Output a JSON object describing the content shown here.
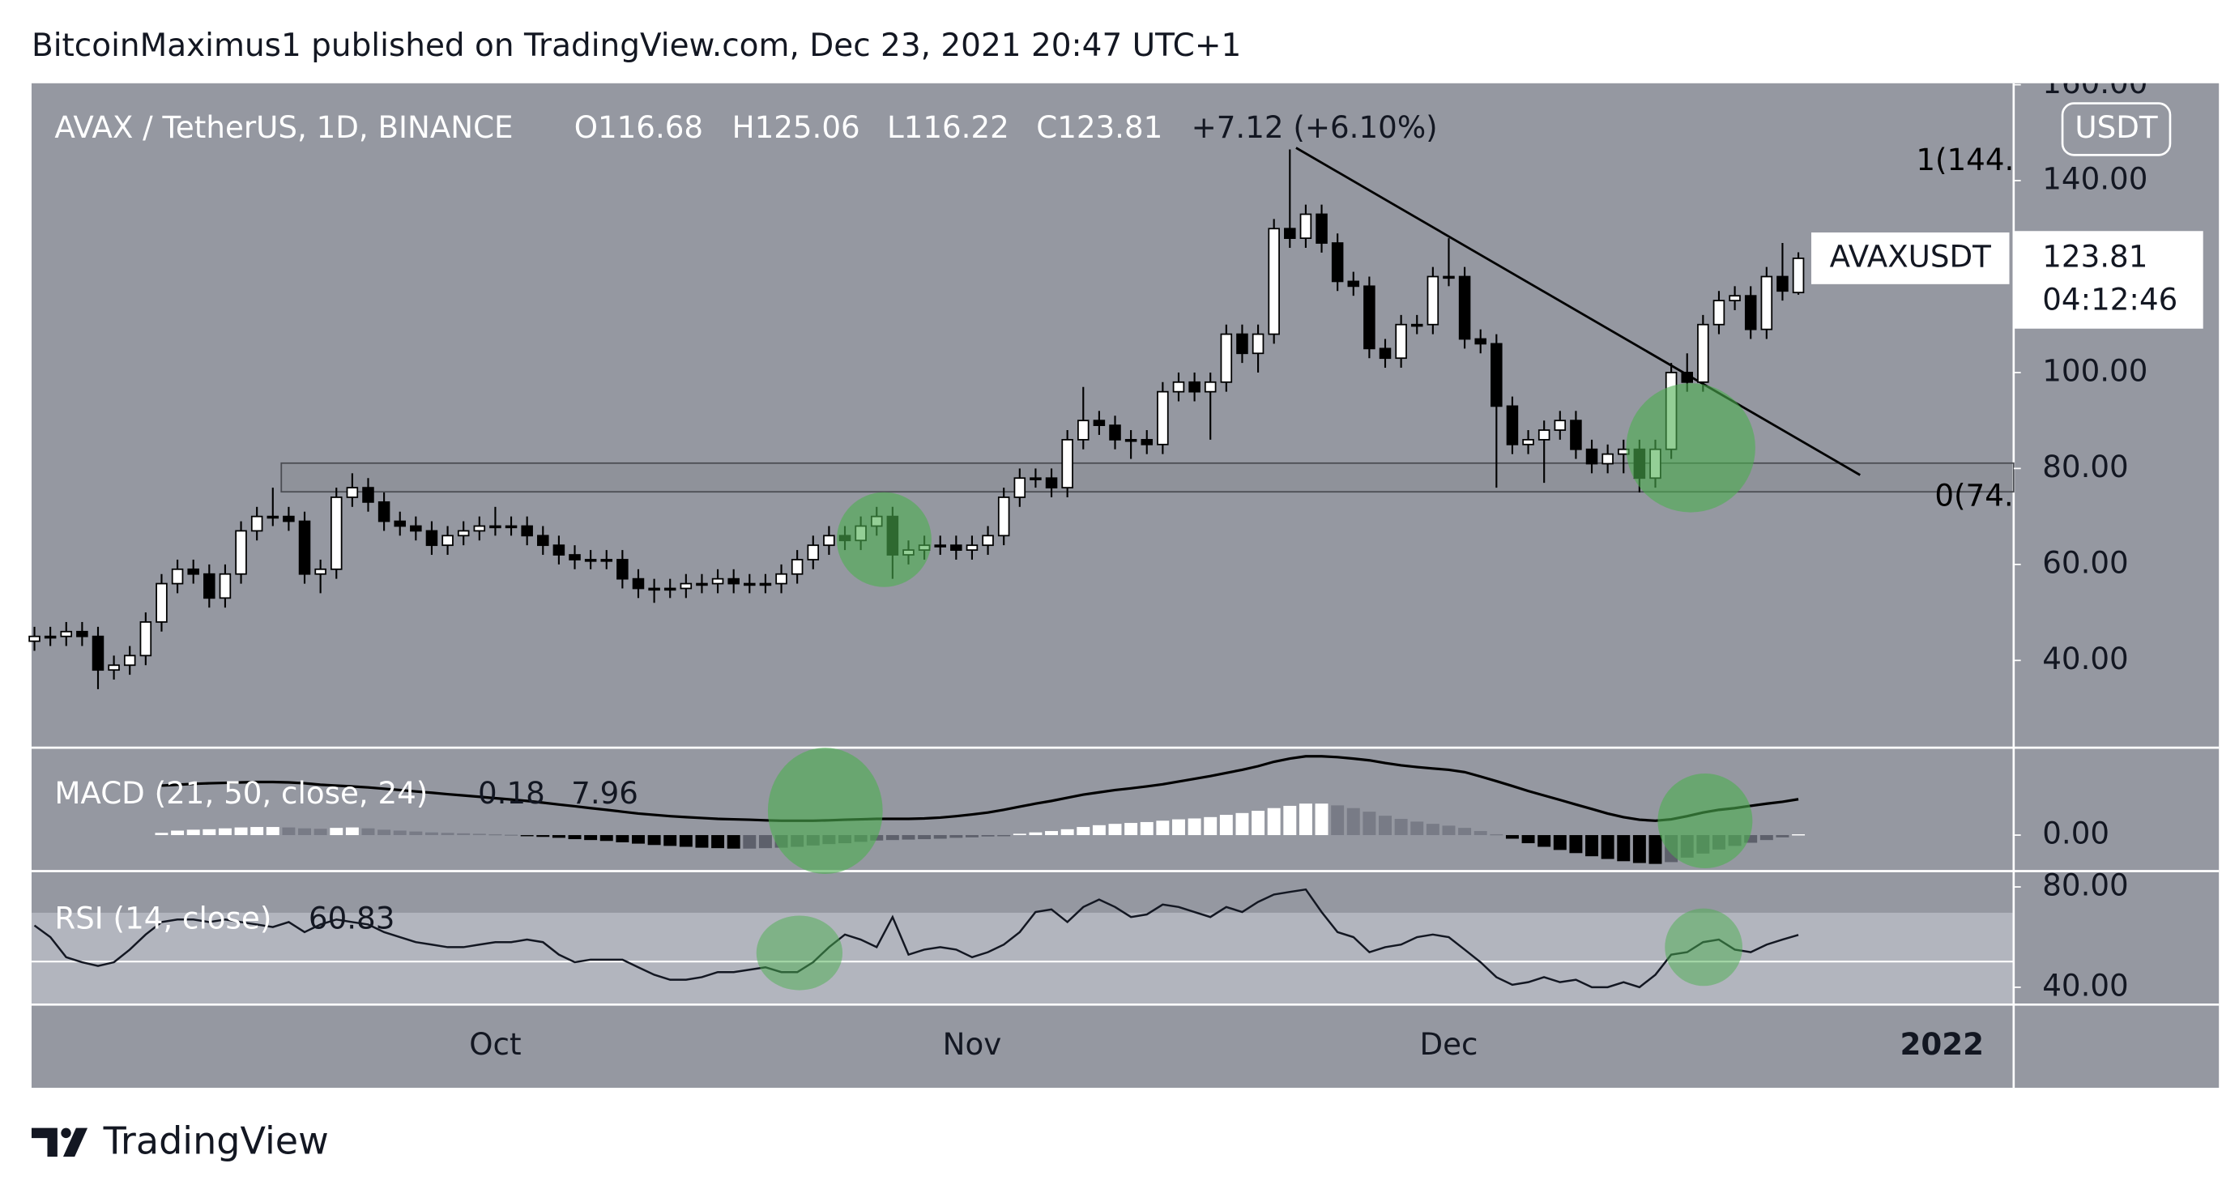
{
  "header": "BitcoinMaximus1 published on TradingView.com, Dec 23, 2021 20:47 UTC+1",
  "footer": "TradingView",
  "chart_data": {
    "type": "candlestick",
    "legend": {
      "symbol": "AVAX / TetherUS, 1D, BINANCE",
      "open": "O116.68",
      "high": "H125.06",
      "low": "L116.22",
      "close": "C123.81",
      "change": "+7.12 (+6.10%)"
    },
    "currency": "USDT",
    "price_label": {
      "symbol": "AVAXUSDT",
      "value": 123.81,
      "countdown": "04:12:46"
    },
    "fib_levels": [
      {
        "value": 144,
        "label": "1(144."
      },
      {
        "value": 74,
        "label": "0(74."
      }
    ],
    "colors": {
      "up": "#ffffff",
      "down": "#000000"
    },
    "categories": [
      null,
      null,
      null,
      null,
      null,
      null,
      null,
      null,
      null,
      null,
      null,
      null,
      null,
      null,
      null,
      null,
      null,
      null,
      null,
      null,
      null,
      null,
      null,
      null,
      null,
      null,
      null,
      null,
      null,
      "Oct",
      null,
      null,
      null,
      null,
      null,
      null,
      null,
      null,
      null,
      null,
      null,
      null,
      null,
      null,
      null,
      null,
      null,
      null,
      null,
      null,
      null,
      null,
      null,
      null,
      null,
      null,
      null,
      null,
      null,
      "Nov",
      null,
      null,
      null,
      null,
      null,
      null,
      null,
      null,
      null,
      null,
      null,
      null,
      null,
      null,
      null,
      null,
      null,
      null,
      null,
      null,
      null,
      null,
      null,
      null,
      null,
      null,
      null,
      null,
      null,
      "Dec",
      null,
      null,
      null,
      null,
      null,
      null,
      null,
      null,
      null,
      null,
      null,
      null,
      null,
      null,
      null,
      null,
      null,
      null,
      null,
      null,
      null,
      null
    ],
    "open": [
      44,
      45,
      45,
      46,
      45,
      38,
      39,
      41,
      48,
      56,
      59,
      58,
      53,
      58,
      67,
      70,
      70,
      69,
      58,
      59,
      74,
      76,
      73,
      69,
      68,
      67,
      64,
      66,
      67,
      68,
      68,
      68,
      66,
      64,
      62,
      61,
      61,
      61,
      57,
      55,
      55,
      55,
      56,
      56,
      57,
      56,
      56,
      56,
      58,
      61,
      64,
      66,
      65,
      68,
      70,
      62,
      63,
      64,
      64,
      63,
      64,
      66,
      74,
      78,
      78,
      76,
      86,
      90,
      89,
      86,
      86,
      85,
      96,
      98,
      96,
      98,
      108,
      104,
      108,
      130,
      128,
      133,
      127,
      119,
      118,
      105,
      103,
      110,
      110,
      120,
      120,
      107,
      106,
      93,
      85,
      86,
      88,
      90,
      84,
      81,
      83,
      84,
      78,
      84,
      100,
      98,
      110,
      115,
      116,
      109,
      120,
      116.68
    ],
    "high": [
      47,
      47,
      48,
      48,
      47,
      41,
      43,
      50,
      58,
      61,
      61,
      60,
      60,
      69,
      72,
      76,
      72,
      71,
      61,
      76,
      79,
      78,
      75,
      71,
      70,
      69,
      68,
      69,
      70,
      72,
      70,
      70,
      68,
      66,
      64,
      63,
      63,
      63,
      59,
      57,
      57,
      58,
      58,
      59,
      59,
      58,
      58,
      60,
      63,
      66,
      68,
      68,
      70,
      72,
      72,
      65,
      66,
      66,
      66,
      66,
      68,
      76,
      80,
      80,
      80,
      88,
      97,
      92,
      91,
      88,
      88,
      98,
      100,
      100,
      100,
      110,
      110,
      110,
      132,
      146.5,
      135,
      135,
      129,
      121,
      120,
      107,
      112,
      112,
      122,
      128,
      122,
      109,
      108,
      95,
      88,
      90,
      92,
      92,
      86,
      85,
      86,
      86,
      86,
      102,
      104,
      112,
      117,
      118,
      118,
      122,
      127,
      125.06
    ],
    "low": [
      42,
      43,
      43,
      43,
      34,
      36,
      37,
      39,
      46,
      54,
      56,
      51,
      51,
      56,
      65,
      68,
      67,
      56,
      54,
      57,
      72,
      71,
      67,
      66,
      65,
      62,
      62,
      64,
      65,
      66,
      66,
      64,
      62,
      60,
      59,
      59,
      59,
      55,
      53,
      52,
      53,
      53,
      54,
      54,
      54,
      54,
      54,
      54,
      56,
      59,
      62,
      63,
      63,
      66,
      57,
      60,
      61,
      62,
      61,
      61,
      62,
      64,
      72,
      76,
      74,
      74,
      84,
      87,
      84,
      82,
      83,
      83,
      94,
      94,
      86,
      96,
      102,
      100,
      106,
      126,
      126,
      125,
      117,
      116,
      103,
      101,
      101,
      108,
      108,
      118,
      105,
      104,
      76,
      83,
      83,
      77,
      86,
      82,
      79,
      79,
      79,
      75,
      76,
      82,
      96,
      96,
      108,
      113,
      107,
      107,
      115,
      116.22
    ],
    "close": [
      45,
      45,
      46,
      45,
      38,
      39,
      41,
      48,
      56,
      59,
      58,
      53,
      58,
      67,
      70,
      70,
      69,
      58,
      59,
      74,
      76,
      73,
      69,
      68,
      67,
      64,
      66,
      67,
      68,
      68,
      68,
      66,
      64,
      62,
      61,
      61,
      61,
      57,
      55,
      55,
      55,
      56,
      56,
      57,
      56,
      56,
      56,
      58,
      61,
      64,
      66,
      65,
      68,
      70,
      62,
      63,
      64,
      64,
      63,
      64,
      66,
      74,
      78,
      78,
      76,
      86,
      90,
      89,
      86,
      86,
      85,
      96,
      98,
      96,
      98,
      108,
      104,
      108,
      130,
      128,
      133,
      127,
      119,
      118,
      105,
      103,
      110,
      110,
      120,
      120,
      107,
      106,
      93,
      85,
      86,
      88,
      90,
      84,
      81,
      83,
      84,
      78,
      84,
      100,
      98,
      110,
      115,
      116,
      109,
      120,
      117,
      123.81
    ],
    "ylim": [
      21.8,
      160.3
    ],
    "yticks": [
      {
        "value": 160,
        "label": "160.00"
      },
      {
        "value": 140,
        "label": "140.00"
      },
      {
        "value": 100,
        "label": "100.00"
      },
      {
        "value": 80,
        "label": "80.00"
      },
      {
        "value": 60,
        "label": "60.00"
      },
      {
        "value": 40,
        "label": "40.00"
      }
    ],
    "x_end_label": "2022",
    "macd": {
      "title": "MACD (21, 50, close, 24)",
      "readout": [
        0.18,
        7.96
      ],
      "histogram": [
        null,
        null,
        null,
        null,
        null,
        null,
        null,
        null,
        0.5,
        1,
        1.2,
        1.3,
        1.5,
        1.7,
        1.8,
        1.8,
        1.7,
        1.5,
        1.4,
        1.6,
        1.7,
        1.5,
        1.2,
        1.0,
        0.8,
        0.6,
        0.5,
        0.4,
        0.3,
        0.2,
        0.1,
        -0.2,
        -0.4,
        -0.6,
        -0.9,
        -1.1,
        -1.3,
        -1.6,
        -1.9,
        -2.2,
        -2.4,
        -2.6,
        -2.8,
        -2.9,
        -3.0,
        -3.0,
        -2.9,
        -2.8,
        -2.6,
        -2.3,
        -2.0,
        -1.8,
        -1.5,
        -1.2,
        -1.1,
        -1.0,
        -0.9,
        -0.8,
        -0.6,
        -0.5,
        -0.3,
        -0.1,
        0.3,
        0.6,
        0.9,
        1.3,
        1.8,
        2.2,
        2.5,
        2.7,
        2.9,
        3.2,
        3.5,
        3.7,
        4.0,
        4.5,
        4.9,
        5.4,
        6.0,
        6.5,
        7.0,
        7.0,
        6.6,
        6.0,
        5.2,
        4.3,
        3.6,
        3.0,
        2.5,
        2.1,
        1.6,
        0.9,
        0.2,
        -0.8,
        -1.8,
        -2.6,
        -3.3,
        -4.0,
        -4.7,
        -5.3,
        -5.8,
        -6.2,
        -6.4,
        -6.0,
        -5.0,
        -4.1,
        -3.2,
        -2.4,
        -1.7,
        -1.1,
        -0.5,
        0.18
      ],
      "line": [
        null,
        null,
        null,
        null,
        null,
        null,
        null,
        null,
        11,
        11.2,
        11.4,
        11.5,
        11.6,
        11.7,
        11.8,
        11.8,
        11.7,
        11.5,
        11.2,
        11.0,
        10.8,
        10.6,
        10.3,
        10.0,
        9.7,
        9.4,
        9.1,
        8.8,
        8.5,
        8.2,
        7.9,
        7.6,
        7.2,
        6.8,
        6.4,
        6.0,
        5.6,
        5.2,
        4.8,
        4.5,
        4.2,
        4.0,
        3.8,
        3.6,
        3.5,
        3.4,
        3.3,
        3.2,
        3.2,
        3.2,
        3.3,
        3.4,
        3.5,
        3.6,
        3.6,
        3.6,
        3.7,
        3.9,
        4.2,
        4.6,
        5.0,
        5.6,
        6.3,
        7.0,
        7.6,
        8.3,
        9.0,
        9.5,
        10.0,
        10.4,
        10.8,
        11.3,
        11.9,
        12.5,
        13.1,
        13.8,
        14.5,
        15.3,
        16.3,
        17.0,
        17.5,
        17.5,
        17.3,
        17.0,
        16.6,
        16.0,
        15.5,
        15.1,
        14.8,
        14.5,
        14.0,
        13.0,
        12.0,
        10.9,
        9.8,
        8.8,
        7.8,
        6.8,
        5.8,
        4.8,
        4.0,
        3.4,
        3.2,
        3.5,
        4.2,
        5.0,
        5.6,
        6.0,
        6.5,
        7.0,
        7.4,
        7.96
      ],
      "line_color": "#000000",
      "ylim": [
        -8,
        19.1
      ],
      "yticks": [
        {
          "value": 0,
          "label": "0.00"
        }
      ]
    },
    "rsi": {
      "title": "RSI (14, close)",
      "readout": 60.83,
      "values": [
        64.6,
        60,
        52,
        50,
        48.5,
        50,
        55,
        61,
        66,
        67,
        67,
        66,
        67,
        66,
        65,
        64,
        66,
        62,
        65,
        67,
        66,
        65,
        62,
        60,
        58,
        57,
        56,
        56,
        57,
        58,
        58,
        59,
        58,
        53,
        50,
        51,
        51,
        51,
        48,
        45,
        43,
        43,
        44,
        46,
        46,
        47,
        48,
        46,
        46,
        50,
        56,
        61,
        59,
        56,
        68,
        53,
        55,
        56,
        55,
        52,
        54,
        57,
        62,
        70,
        71,
        66,
        72,
        75,
        72,
        68,
        69,
        73,
        72,
        70,
        68,
        72,
        70,
        74,
        77,
        78,
        79,
        70,
        62,
        60,
        54,
        56,
        57,
        60,
        61,
        60,
        55,
        50,
        44,
        41,
        42,
        44,
        42,
        43,
        40,
        40,
        42,
        40,
        45,
        53,
        54,
        58,
        59,
        55,
        54,
        57,
        59,
        60.83
      ],
      "color": "#131722",
      "ylim": [
        33.1,
        86.3
      ],
      "yticks": [
        {
          "value": 80,
          "label": "80.00"
        },
        {
          "value": 40,
          "label": "40.00"
        }
      ]
    }
  }
}
